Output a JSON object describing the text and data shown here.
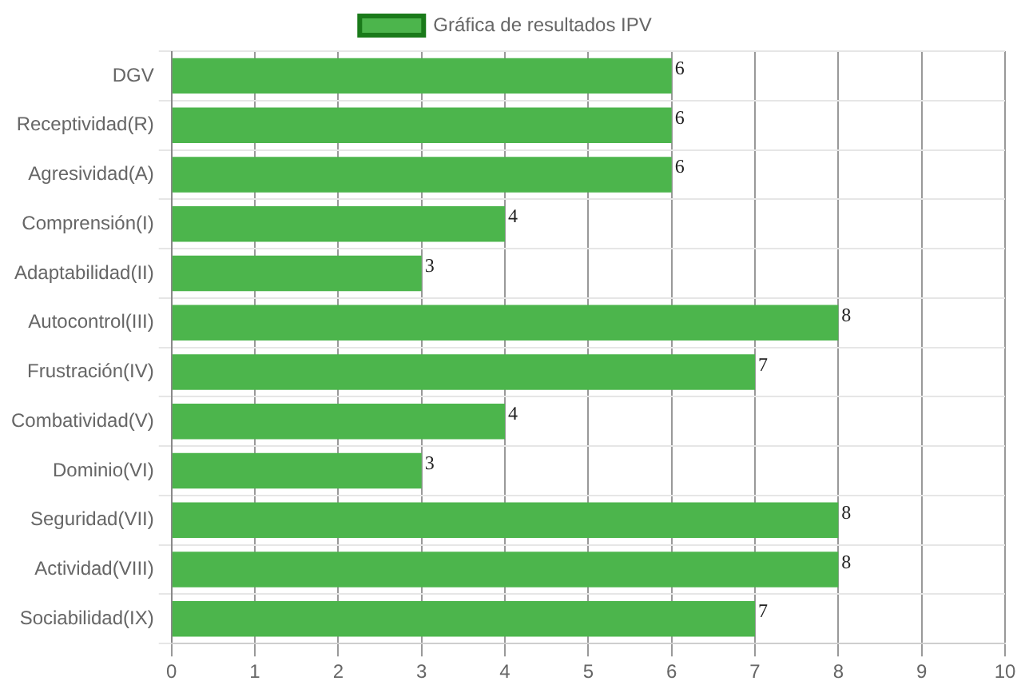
{
  "chart_data": {
    "type": "bar",
    "orientation": "horizontal",
    "categories": [
      "DGV",
      "Receptividad(R)",
      "Agresividad(A)",
      "Comprensión(I)",
      "Adaptabilidad(II)",
      "Autocontrol(III)",
      "Frustración(IV)",
      "Combatividad(V)",
      "Dominio(VI)",
      "Seguridad(VII)",
      "Actividad(VIII)",
      "Sociabilidad(IX)"
    ],
    "series": [
      {
        "name": "Gráfica de resultados IPV",
        "color": "#4cb54c",
        "values": [
          6,
          6,
          6,
          4,
          3,
          8,
          7,
          4,
          3,
          8,
          8,
          7
        ]
      }
    ],
    "xlim": [
      0,
      10
    ],
    "xticks": [
      0,
      1,
      2,
      3,
      4,
      5,
      6,
      7,
      8,
      9,
      10
    ],
    "grid": true,
    "legend": "top",
    "data_labels": true
  }
}
